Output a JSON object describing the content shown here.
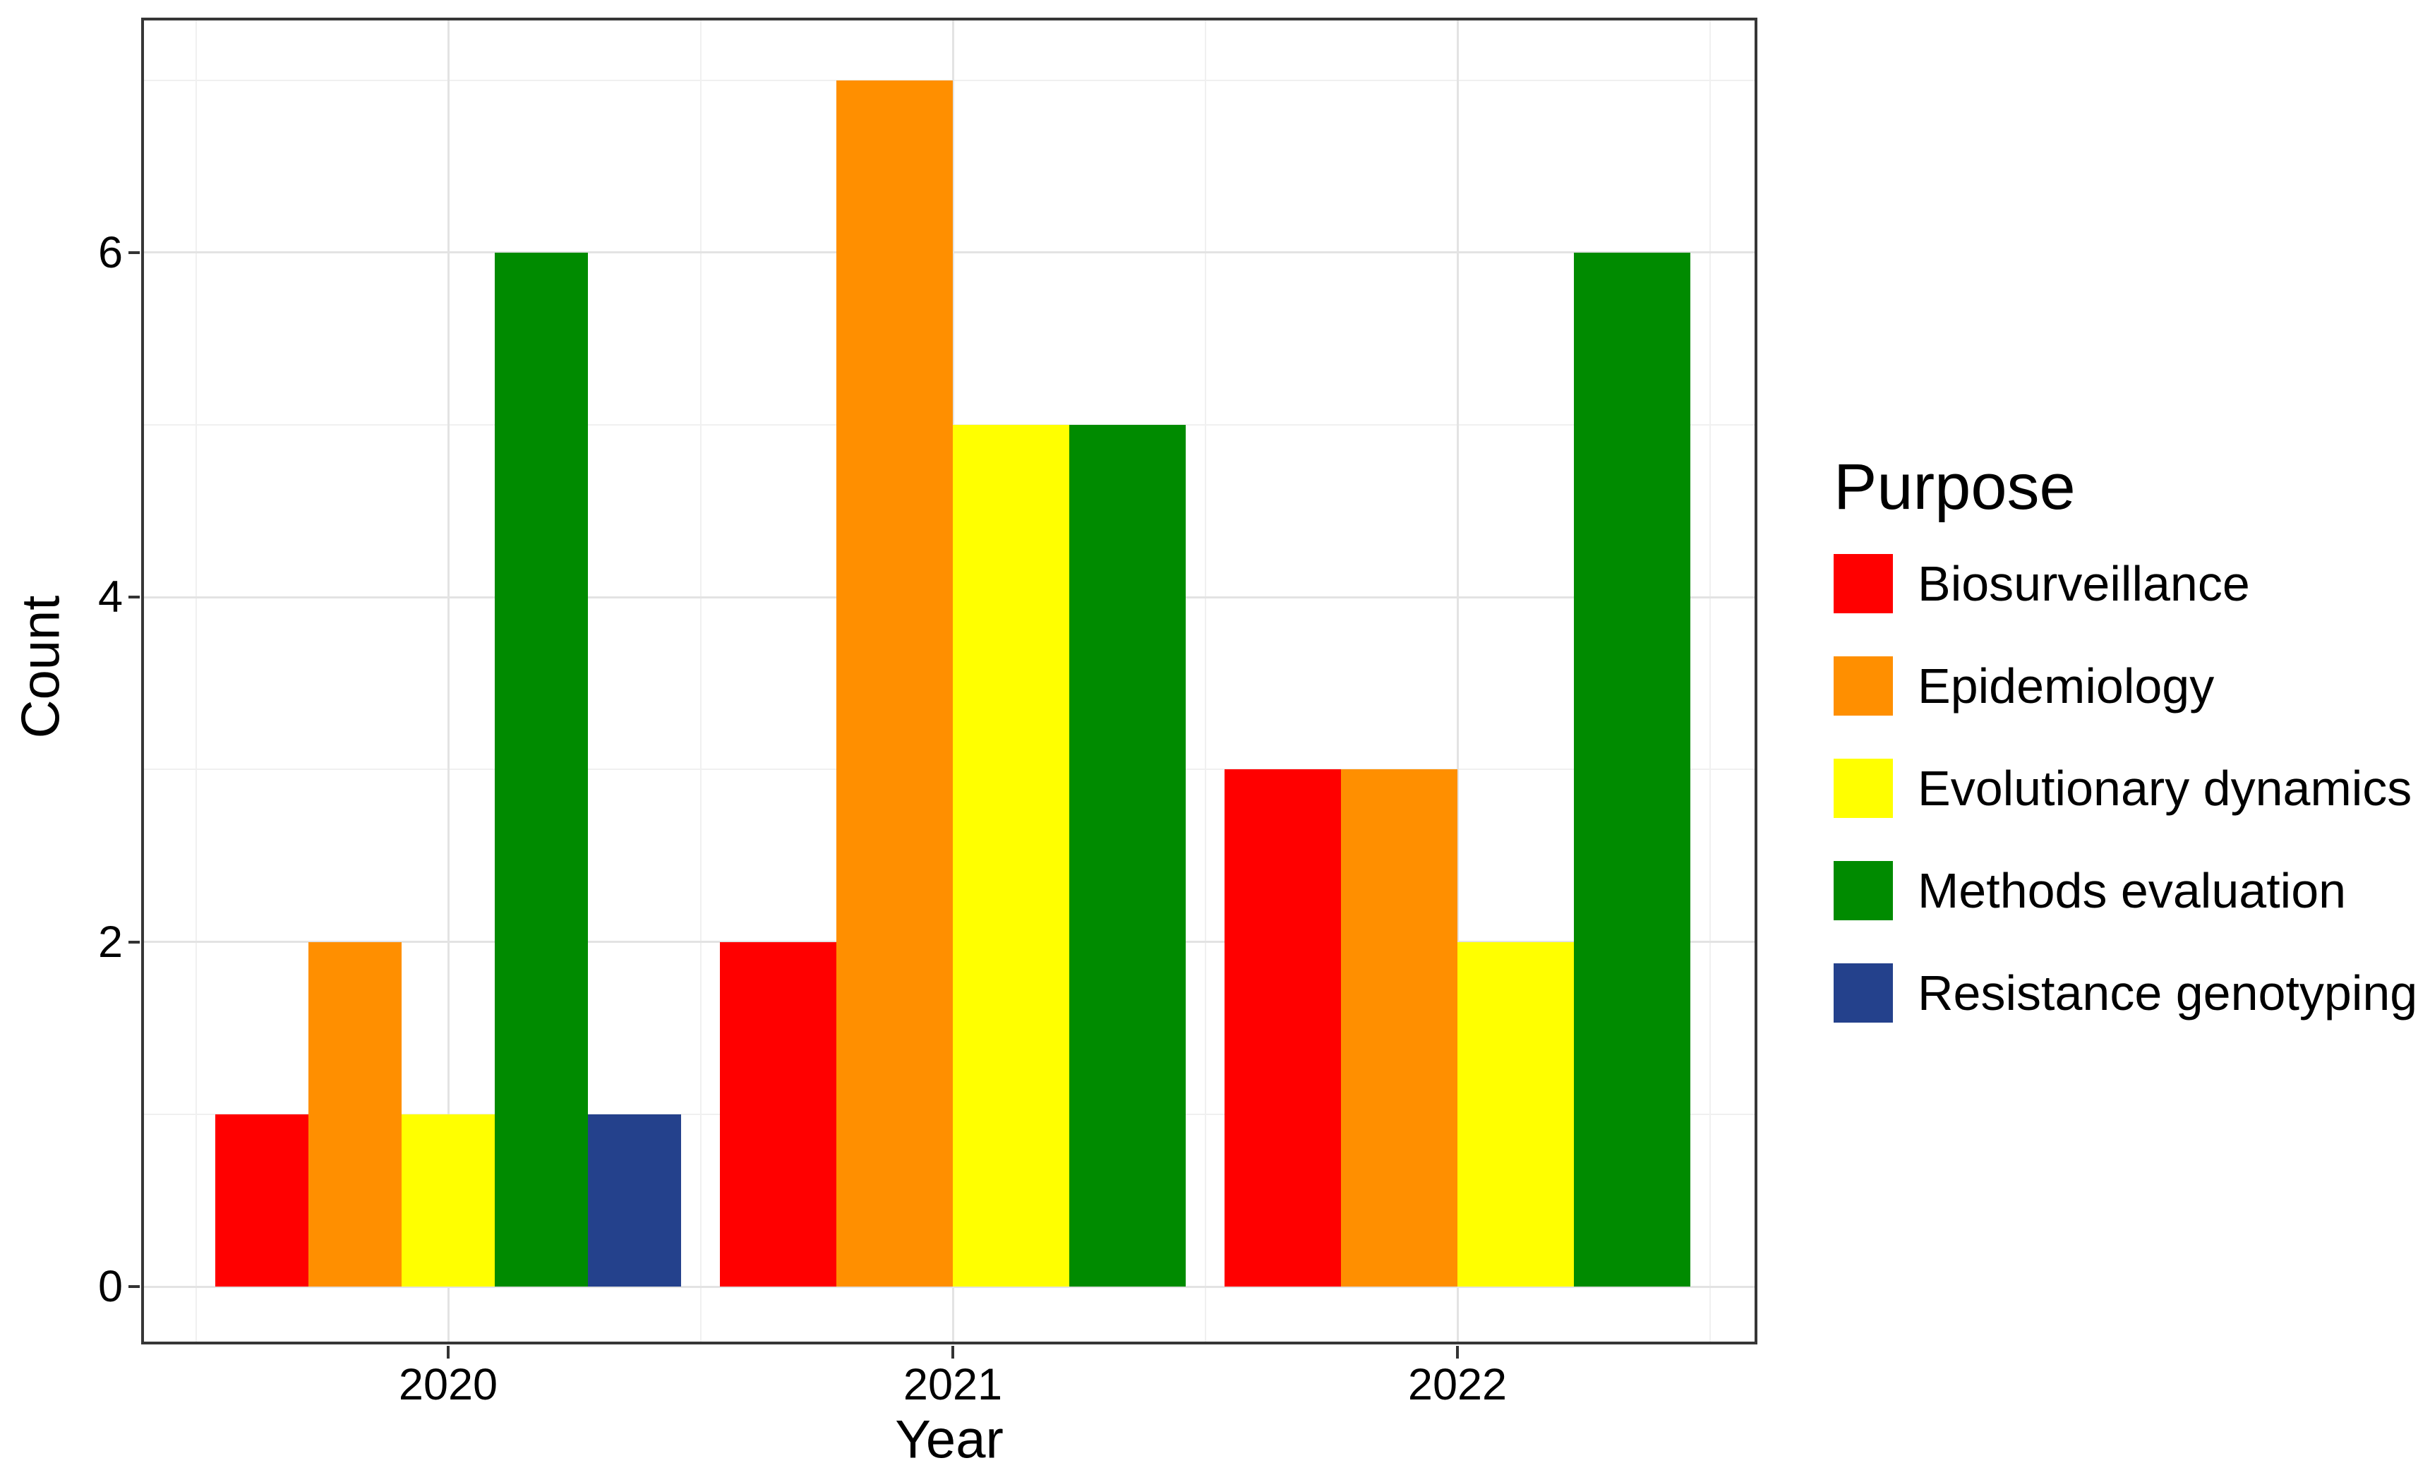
{
  "legend": {
    "title": "Purpose"
  },
  "chart_data": {
    "type": "bar",
    "title": "",
    "xlabel": "Year",
    "ylabel": "Count",
    "categories": [
      "2020",
      "2021",
      "2022"
    ],
    "series": [
      {
        "name": "Biosurveillance",
        "color": "#FF0000",
        "values": [
          1,
          2,
          3
        ]
      },
      {
        "name": "Epidemiology",
        "color": "#FF8F00",
        "values": [
          2,
          7,
          3
        ]
      },
      {
        "name": "Evolutionary dynamics",
        "color": "#FFFF00",
        "values": [
          1,
          5,
          2
        ]
      },
      {
        "name": "Methods evaluation",
        "color": "#008B00",
        "values": [
          6,
          5,
          6
        ]
      },
      {
        "name": "Resistance genotyping",
        "color": "#24418C",
        "values": [
          1,
          null,
          null
        ]
      }
    ],
    "ylim": [
      0,
      7.37
    ],
    "yticks": [
      {
        "label": "0",
        "value": 0
      },
      {
        "label": "2",
        "value": 2
      },
      {
        "label": "4",
        "value": 4
      },
      {
        "label": "6",
        "value": 6
      }
    ],
    "yminor_values": [
      1,
      3,
      5,
      7
    ],
    "grid": "major and minor, light gray on white",
    "legend_position": "right",
    "bar_group_layout": "dodge; missing categories widen remaining bars"
  }
}
